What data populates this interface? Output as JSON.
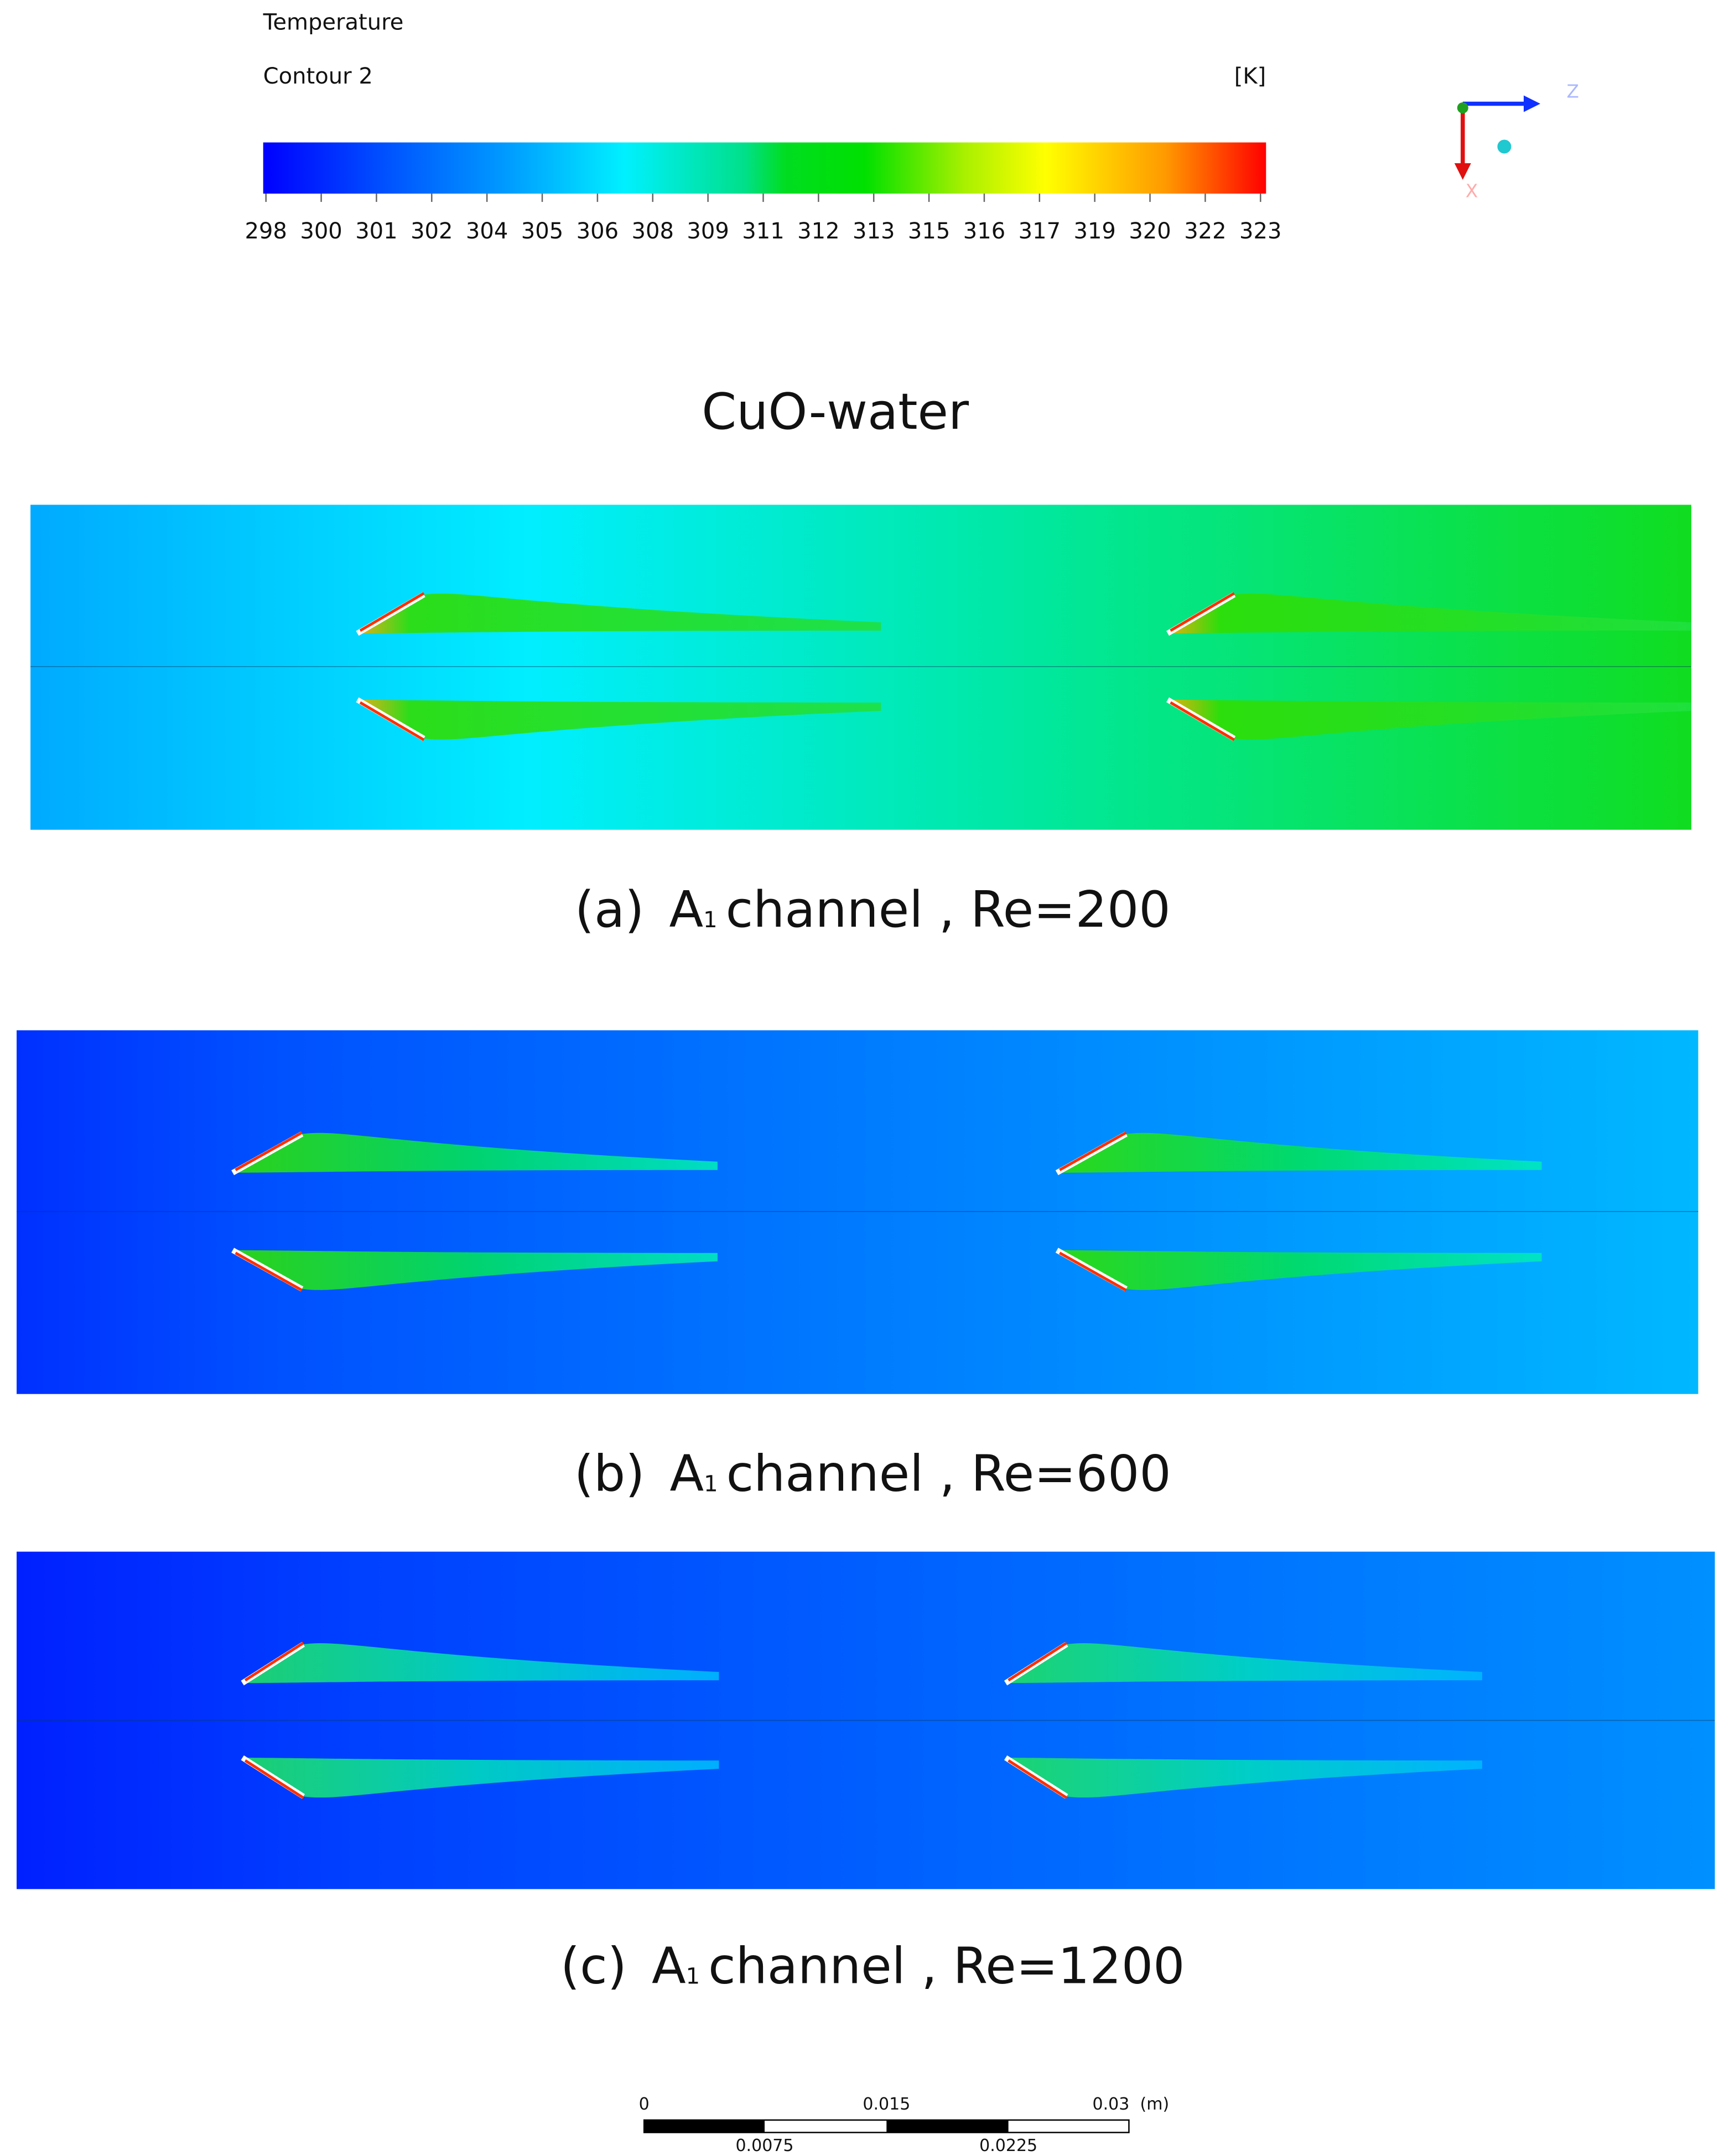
{
  "legend": {
    "title": "Temperature",
    "subtitle": "Contour 2",
    "unit": "[K]",
    "ticks": [
      "298",
      "300",
      "301",
      "302",
      "304",
      "305",
      "306",
      "308",
      "309",
      "311",
      "312",
      "313",
      "315",
      "316",
      "317",
      "319",
      "320",
      "322",
      "323"
    ]
  },
  "axes_triad": {
    "z": "Z",
    "x": "X"
  },
  "heading": "CuO-water",
  "panels": [
    {
      "label": "(a)",
      "name": "A",
      "subscript": "1",
      "text": "channel , Re=200"
    },
    {
      "label": "(b)",
      "name": "A",
      "subscript": "1",
      "text": "channel , Re=600"
    },
    {
      "label": "(c)",
      "name": "A",
      "subscript": "1",
      "text": "channel , Re=1200"
    }
  ],
  "scale_bar": {
    "top": [
      "0",
      "0.015",
      "0.03"
    ],
    "unit": "(m)",
    "bottom": [
      "0.0075",
      "0.0225"
    ]
  }
}
